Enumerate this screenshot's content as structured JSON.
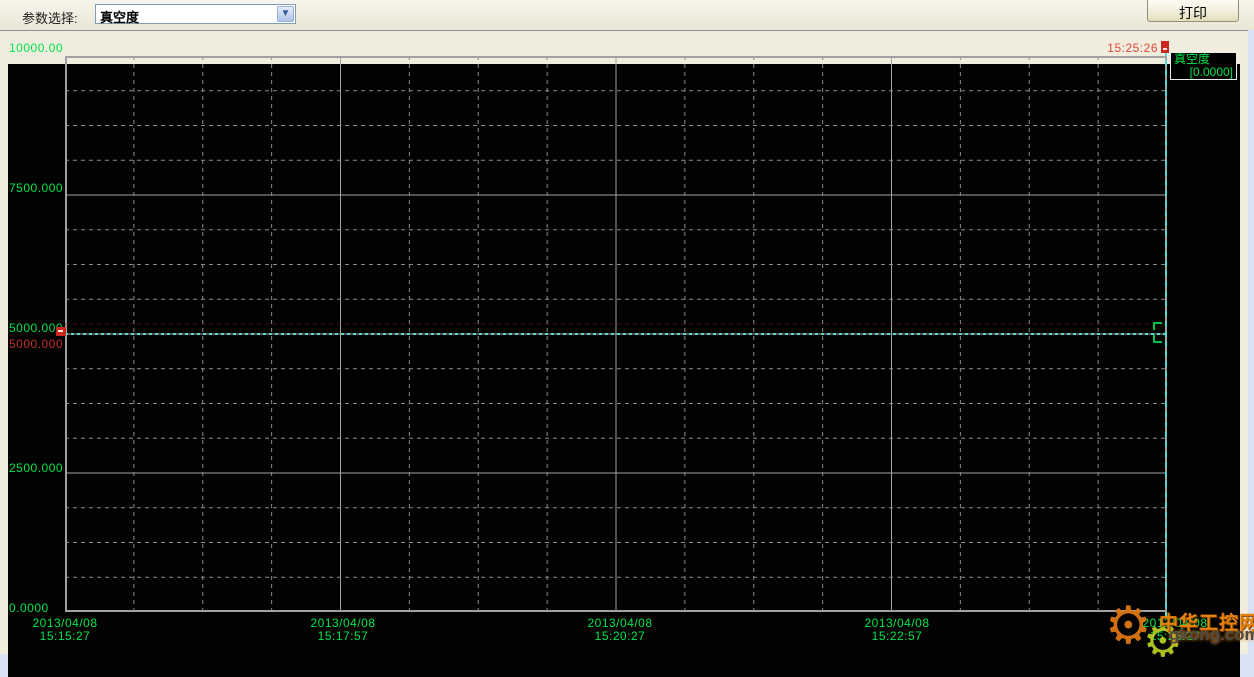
{
  "toolbar": {
    "param_label": "参数选择:",
    "param_value": "真空度",
    "dropdown_arrow": "▼",
    "print_label": "打印"
  },
  "chart": {
    "cursor_time": "15:25:26",
    "tooltip": {
      "name": "真空度",
      "value": "[0.0000]"
    },
    "y_axis": {
      "labels": [
        "10000.00",
        "7500.000",
        "5000.000",
        "2500.000",
        "0.0000"
      ],
      "cursor_value": "5000.000"
    },
    "x_axis": {
      "date": "2013/04/08",
      "times": [
        "15:15:27",
        "15:17:57",
        "15:20:27",
        "15:22:57",
        "15:25:27"
      ]
    }
  },
  "chart_data": {
    "type": "line",
    "title": "",
    "series": [
      {
        "name": "真空度",
        "color": "#00e44a",
        "values": [],
        "current_reading": 0.0
      }
    ],
    "y_axis": {
      "min": 0,
      "max": 10000,
      "ticks": [
        0,
        2500,
        5000,
        7500,
        10000
      ]
    },
    "x_axis": {
      "date": "2013/04/08",
      "ticks": [
        "15:15:27",
        "15:17:57",
        "15:20:27",
        "15:22:57",
        "15:25:27"
      ],
      "tick_interval_seconds": 150
    },
    "cursor": {
      "time": "15:25:26",
      "y_level": 5000,
      "reading": "0.0000"
    },
    "grid": {
      "rows": 16,
      "cols": 16,
      "style": "dashed minor, solid major"
    },
    "legend_position": "top-right-tooltip"
  },
  "watermark": {
    "site_name": "中华工控网",
    "site_url": "gkong.com",
    "gear_icon": "⚙"
  },
  "colors": {
    "axis_green": "#00e44a",
    "cursor_red": "#d03028",
    "cursor_cyan": "#58d8d2",
    "grid_gray": "#8c8c8c",
    "plot_background": "#000000",
    "frame_beige": "#f0eddf"
  }
}
